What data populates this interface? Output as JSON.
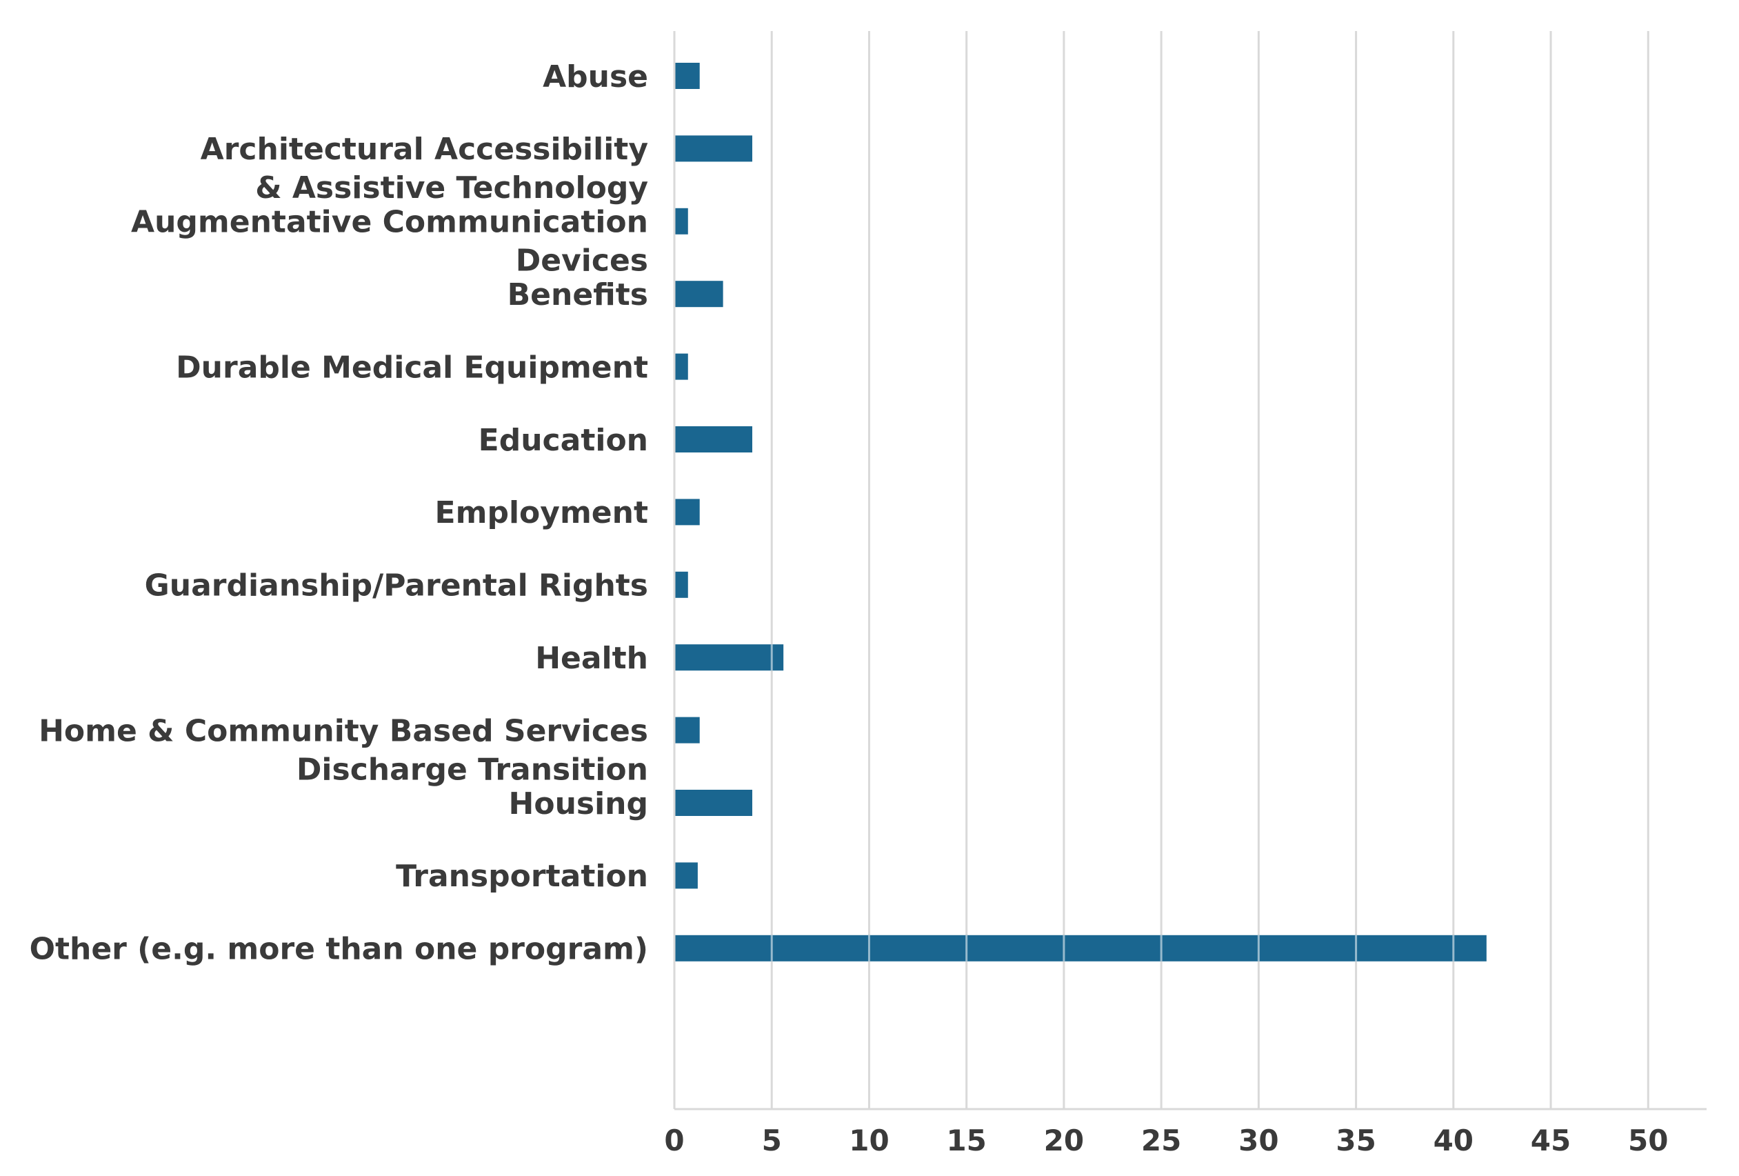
{
  "chart_data": {
    "type": "bar",
    "orientation": "horizontal",
    "title": "",
    "xlabel": "",
    "ylabel": "",
    "categories": [
      [
        "Abuse"
      ],
      [
        "Architectural Accessibility",
        "& Assistive Technology"
      ],
      [
        "Augmentative Communication",
        "Devices"
      ],
      [
        "Benefits"
      ],
      [
        "Durable Medical Equipment"
      ],
      [
        "Education"
      ],
      [
        "Employment"
      ],
      [
        "Guardianship/Parental Rights"
      ],
      [
        "Health"
      ],
      [
        "Home & Community Based Services",
        "Discharge Transition"
      ],
      [
        "Housing"
      ],
      [
        "Transportation"
      ],
      [
        "Other (e.g. more than one program)"
      ]
    ],
    "values": [
      1.3,
      4.0,
      0.7,
      2.5,
      0.7,
      4.0,
      1.3,
      0.7,
      5.6,
      1.3,
      4.0,
      1.2,
      41.7
    ],
    "xlim": [
      0,
      53
    ],
    "xticks": [
      0,
      5,
      10,
      15,
      20,
      25,
      30,
      35,
      40,
      45,
      50
    ],
    "grid": "vertical",
    "colors": {
      "bar": "#1a6690",
      "grid": "#d9d9d9",
      "text": "#3a3a3a"
    }
  }
}
